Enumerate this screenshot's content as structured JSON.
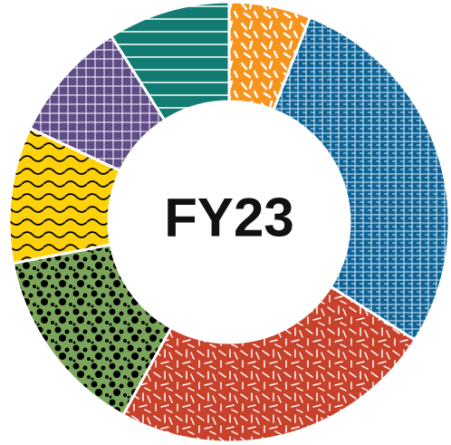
{
  "chart_data": {
    "type": "donut",
    "title": "FY23",
    "values": [
      6,
      28,
      24,
      14,
      10,
      9,
      9
    ],
    "colors": [
      "#f7941d",
      "#0b6397",
      "#c8412b",
      "#7aa55a",
      "#fdd20b",
      "#5f4b87",
      "#137c72"
    ]
  }
}
